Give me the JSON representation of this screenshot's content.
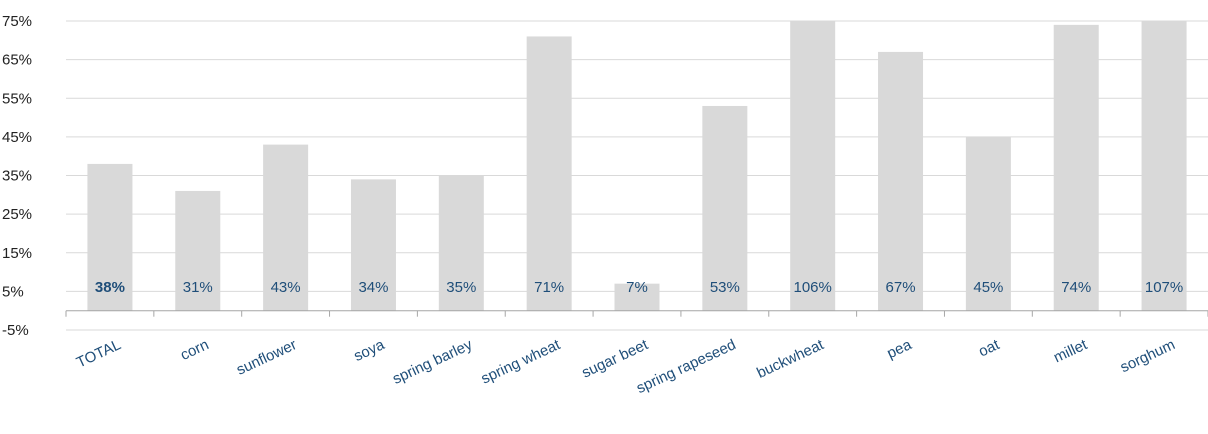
{
  "chart_data": {
    "type": "bar",
    "title": "",
    "xlabel": "",
    "ylabel": "",
    "ylim": [
      -5,
      75
    ],
    "yticks": [
      -5,
      5,
      15,
      25,
      35,
      45,
      55,
      65,
      75
    ],
    "ytick_labels": [
      "-5%",
      "5%",
      "15%",
      "25%",
      "35%",
      "45%",
      "55%",
      "65%",
      "75%"
    ],
    "grid": true,
    "legend": "none",
    "categories": [
      "TOTAL",
      "corn",
      "sunflower",
      "soya",
      "spring barley",
      "spring wheat",
      "sugar beet",
      "spring rapeseed",
      "buckwheat",
      "pea",
      "oat",
      "millet",
      "sorghum"
    ],
    "values": [
      38,
      31,
      43,
      34,
      35,
      71,
      7,
      53,
      106,
      67,
      45,
      74,
      107
    ],
    "data_labels": [
      "38%",
      "31%",
      "43%",
      "34%",
      "35%",
      "71%",
      "7%",
      "53%",
      "106%",
      "67%",
      "45%",
      "74%",
      "107%"
    ],
    "bold_labels": [
      "TOTAL"
    ],
    "colors": {
      "bar": "#d9d9d9",
      "grid": "#d9d9d9",
      "axis": "#a6a6a6",
      "label": "#1f4e79",
      "tick": "#222222"
    }
  }
}
